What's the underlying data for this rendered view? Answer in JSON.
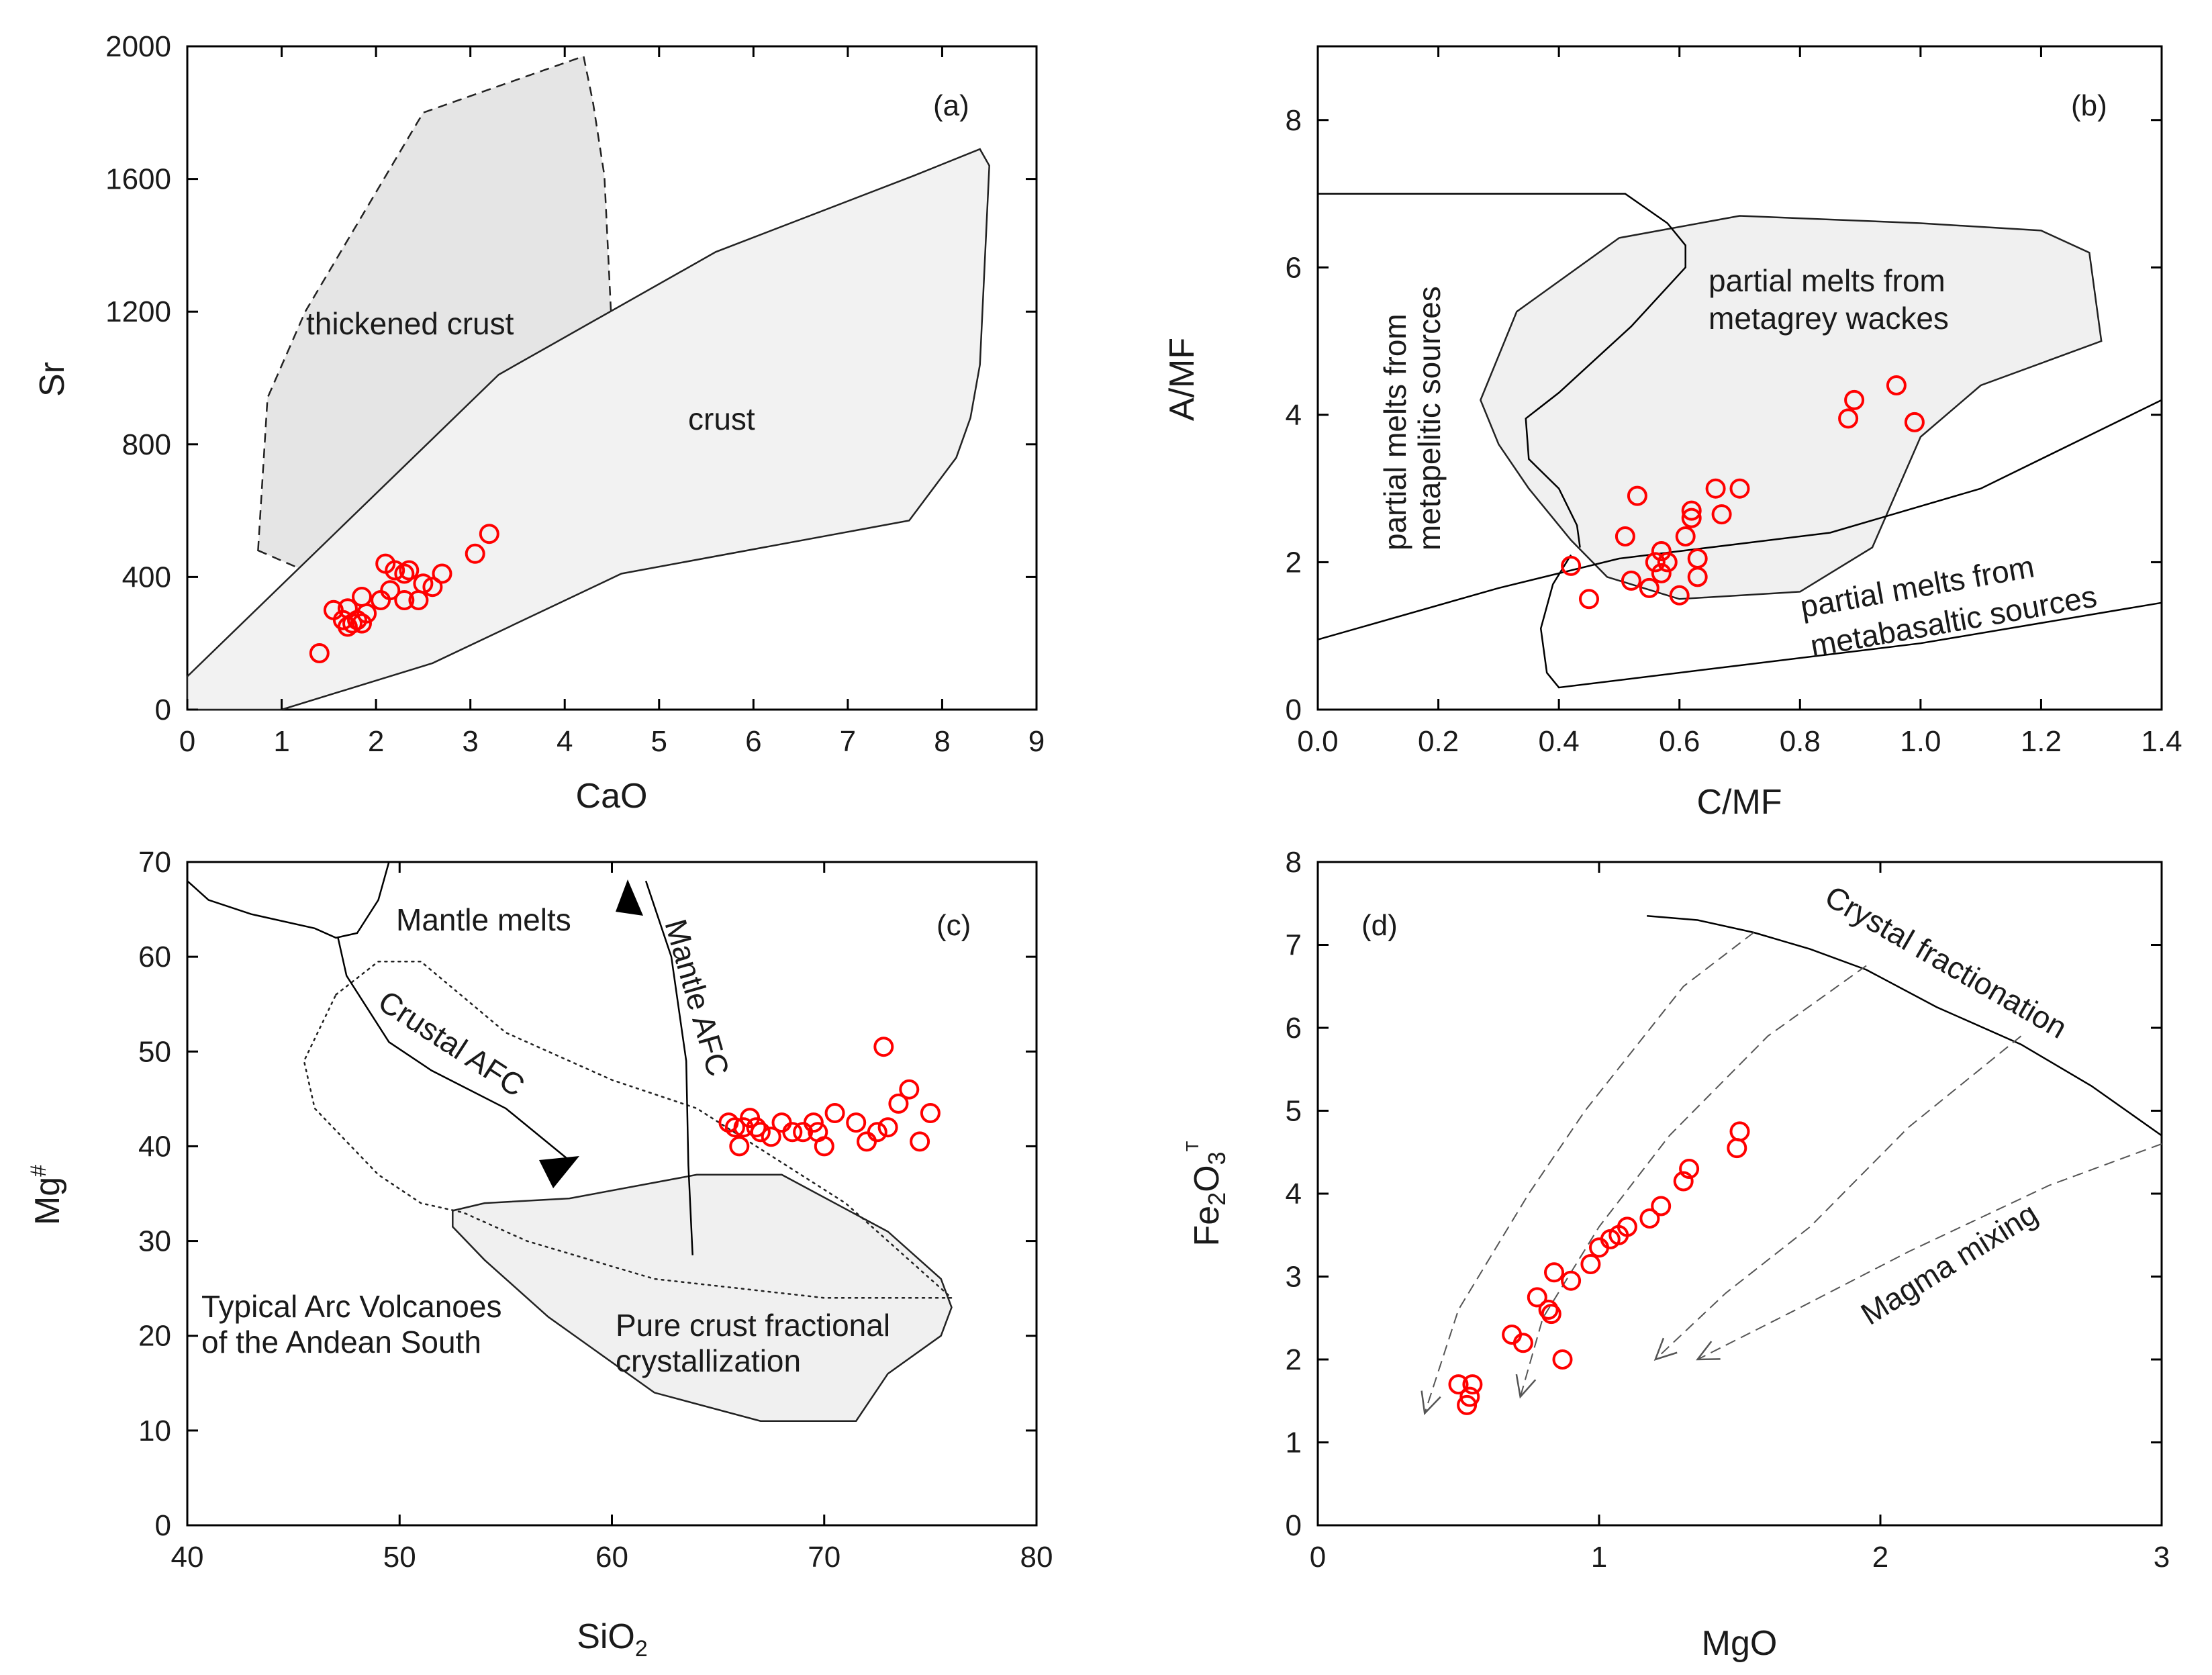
{
  "chart_data": [
    {
      "type": "scatter",
      "panel": "(a)",
      "xlabel": "CaO",
      "ylabel": "Sr",
      "xlim": [
        0,
        9
      ],
      "ylim": [
        0,
        2000
      ],
      "xticks": [
        "0",
        "1",
        "2",
        "3",
        "4",
        "5",
        "6",
        "7",
        "8",
        "9"
      ],
      "yticks": [
        "0",
        "400",
        "800",
        "1200",
        "1600",
        "2000"
      ],
      "fields": [
        {
          "label": "thickened crust",
          "style": "dashed",
          "fill": "#e5e5e5",
          "polygon": [
            [
              0.75,
              480
            ],
            [
              0.85,
              940
            ],
            [
              1.25,
              1200
            ],
            [
              2.5,
              1800
            ],
            [
              4.2,
              1970
            ],
            [
              4.3,
              1830
            ],
            [
              4.42,
              1610
            ],
            [
              4.5,
              1140
            ],
            [
              3.6,
              680
            ],
            [
              2.6,
              425
            ],
            [
              1.8,
              350
            ]
          ]
        },
        {
          "label": "crust",
          "style": "solid",
          "fill": "#f2f2f2",
          "polygon": [
            [
              0,
              0
            ],
            [
              0,
              100
            ],
            [
              3.3,
              1010
            ],
            [
              5.6,
              1380
            ],
            [
              7.7,
              1610
            ],
            [
              8.4,
              1690
            ],
            [
              8.5,
              1640
            ],
            [
              8.4,
              1040
            ],
            [
              8.3,
              880
            ],
            [
              8.15,
              760
            ],
            [
              7.65,
              570
            ],
            [
              4.6,
              410
            ],
            [
              2.6,
              140
            ],
            [
              1.0,
              0
            ]
          ]
        }
      ],
      "points": [
        [
          1.4,
          170
        ],
        [
          1.55,
          300
        ],
        [
          1.65,
          270
        ],
        [
          1.7,
          250
        ],
        [
          1.75,
          260
        ],
        [
          1.7,
          305
        ],
        [
          1.8,
          270
        ],
        [
          1.85,
          340
        ],
        [
          1.9,
          290
        ],
        [
          1.85,
          260
        ],
        [
          2.05,
          330
        ],
        [
          2.1,
          440
        ],
        [
          2.15,
          360
        ],
        [
          2.2,
          420
        ],
        [
          2.3,
          410
        ],
        [
          2.35,
          420
        ],
        [
          2.3,
          330
        ],
        [
          2.45,
          330
        ],
        [
          2.5,
          380
        ],
        [
          2.6,
          370
        ],
        [
          2.7,
          410
        ],
        [
          3.05,
          470
        ],
        [
          3.2,
          530
        ]
      ],
      "marker_color": "#ff0000"
    },
    {
      "type": "scatter",
      "panel": "(b)",
      "xlabel": "C/MF",
      "ylabel": "A/MF",
      "xlim": [
        0,
        1.4
      ],
      "ylim": [
        0,
        9
      ],
      "xticks": [
        "0.0",
        "0.2",
        "0.4",
        "0.6",
        "0.8",
        "1.0",
        "1.2",
        "1.4"
      ],
      "yticks": [
        "0",
        "2",
        "4",
        "6",
        "8"
      ],
      "fields": [
        {
          "label": "partial melts from metagrey wackes",
          "style": "solid",
          "fill": "#f0f0f0",
          "polygon": [
            [
              0.27,
              4.2
            ],
            [
              0.33,
              5.4
            ],
            [
              0.5,
              6.4
            ],
            [
              0.7,
              6.7
            ],
            [
              1.0,
              6.6
            ],
            [
              1.2,
              6.5
            ],
            [
              1.28,
              6.2
            ],
            [
              1.3,
              5.0
            ],
            [
              1.1,
              4.4
            ],
            [
              1.0,
              3.7
            ],
            [
              0.92,
              2.2
            ],
            [
              0.8,
              1.6
            ],
            [
              0.6,
              1.5
            ],
            [
              0.48,
              1.8
            ],
            [
              0.42,
              2.3
            ],
            [
              0.35,
              3.0
            ],
            [
              0.3,
              3.6
            ]
          ]
        }
      ],
      "curves": [
        {
          "label": "partial melts from metapelitic sources",
          "points": [
            [
              0.0,
              7.0
            ],
            [
              0.51,
              7.0
            ],
            [
              0.58,
              6.6
            ],
            [
              0.61,
              6.3
            ],
            [
              0.61,
              6.0
            ],
            [
              0.52,
              5.2
            ],
            [
              0.4,
              4.3
            ],
            [
              0.345,
              3.95
            ],
            [
              0.35,
              3.4
            ],
            [
              0.4,
              3.0
            ],
            [
              0.43,
              2.5
            ],
            [
              0.435,
              2.2
            ]
          ]
        },
        {
          "label": "",
          "points": [
            [
              0.0,
              0.95
            ],
            [
              0.3,
              1.65
            ],
            [
              0.5,
              2.05
            ],
            [
              0.75,
              2.3
            ],
            [
              0.85,
              2.4
            ],
            [
              1.1,
              3.0
            ],
            [
              1.4,
              4.2
            ]
          ]
        },
        {
          "label": "partial melts from metabasaltic sources",
          "points": [
            [
              0.42,
              2.1
            ],
            [
              0.39,
              1.7
            ],
            [
              0.37,
              1.1
            ],
            [
              0.38,
              0.5
            ],
            [
              0.4,
              0.3
            ],
            [
              0.7,
              0.6
            ],
            [
              1.0,
              0.9
            ],
            [
              1.4,
              1.45
            ]
          ]
        }
      ],
      "points": [
        [
          0.42,
          1.95
        ],
        [
          0.45,
          1.5
        ],
        [
          0.51,
          2.35
        ],
        [
          0.52,
          1.75
        ],
        [
          0.53,
          2.9
        ],
        [
          0.55,
          1.65
        ],
        [
          0.56,
          2.0
        ],
        [
          0.57,
          2.15
        ],
        [
          0.57,
          1.85
        ],
        [
          0.58,
          2.0
        ],
        [
          0.6,
          1.55
        ],
        [
          0.61,
          2.35
        ],
        [
          0.62,
          2.6
        ],
        [
          0.62,
          2.7
        ],
        [
          0.63,
          2.05
        ],
        [
          0.63,
          1.8
        ],
        [
          0.66,
          3.0
        ],
        [
          0.67,
          2.65
        ],
        [
          0.7,
          3.0
        ],
        [
          0.88,
          3.95
        ],
        [
          0.89,
          4.2
        ],
        [
          0.96,
          4.4
        ],
        [
          0.99,
          3.9
        ]
      ],
      "marker_color": "#ff0000"
    },
    {
      "type": "scatter",
      "panel": "(c)",
      "xlabel": "SiO2",
      "ylabel": "Mg#",
      "xlim": [
        40,
        80
      ],
      "ylim": [
        0,
        70
      ],
      "xticks": [
        "40",
        "50",
        "60",
        "70",
        "80"
      ],
      "yticks": [
        "0",
        "10",
        "20",
        "30",
        "40",
        "50",
        "60",
        "70"
      ],
      "fields": [
        {
          "label": "Pure crust fractional crystallization",
          "style": "solid",
          "fill": "#f0f0f0",
          "polygon": [
            [
              52.5,
              33.2
            ],
            [
              54,
              34
            ],
            [
              58,
              34.5
            ],
            [
              64,
              37
            ],
            [
              68,
              37
            ],
            [
              73,
              31
            ],
            [
              75.5,
              26
            ],
            [
              76,
              23
            ],
            [
              75.5,
              20
            ],
            [
              73,
              16
            ],
            [
              71.5,
              11
            ],
            [
              67,
              11
            ],
            [
              62,
              14
            ],
            [
              57,
              22
            ],
            [
              54,
              28
            ],
            [
              52.5,
              31.5
            ]
          ]
        },
        {
          "label": "Typical Arc Volcanoes of the Andean South",
          "style": "dotted",
          "fill": "none",
          "polygon": [
            [
              47,
              56
            ],
            [
              49,
              59.5
            ],
            [
              51,
              59.5
            ],
            [
              55,
              52
            ],
            [
              60,
              47
            ],
            [
              64,
              44
            ],
            [
              71,
              34
            ],
            [
              76,
              24
            ],
            [
              70,
              24
            ],
            [
              62,
              26
            ],
            [
              56,
              30
            ],
            [
              53,
              33
            ],
            [
              51,
              34
            ],
            [
              49,
              37
            ],
            [
              46,
              44
            ],
            [
              45.5,
              49
            ]
          ]
        }
      ],
      "curves": [
        {
          "label": "Mantle melts",
          "points": [
            [
              40,
              68
            ],
            [
              41,
              66
            ],
            [
              43,
              64.5
            ],
            [
              46,
              63
            ],
            [
              47,
              62
            ],
            [
              48,
              62.5
            ],
            [
              49,
              66
            ],
            [
              49.5,
              70
            ]
          ]
        },
        {
          "label": "Crustal AFC",
          "points": [
            [
              47.1,
              62
            ],
            [
              47.5,
              58
            ],
            [
              49.5,
              51
            ],
            [
              51.5,
              48
            ],
            [
              55,
              44
            ],
            [
              58,
              38.5
            ]
          ]
        },
        {
          "label": "Mantle AFC",
          "points": [
            [
              63.8,
              28.5
            ],
            [
              63.6,
              38
            ],
            [
              63.5,
              49
            ],
            [
              62.8,
              60
            ],
            [
              61.6,
              68
            ]
          ]
        }
      ],
      "points": [
        [
          65.5,
          42.5
        ],
        [
          65.8,
          42
        ],
        [
          66,
          40
        ],
        [
          66.2,
          42
        ],
        [
          66.5,
          43
        ],
        [
          66.8,
          42
        ],
        [
          67,
          41.5
        ],
        [
          67.5,
          41
        ],
        [
          68,
          42.5
        ],
        [
          68.5,
          41.5
        ],
        [
          69,
          41.5
        ],
        [
          69.5,
          42.5
        ],
        [
          69.7,
          41.5
        ],
        [
          70,
          40
        ],
        [
          70.5,
          43.5
        ],
        [
          71.5,
          42.5
        ],
        [
          72,
          40.5
        ],
        [
          72.5,
          41.5
        ],
        [
          73,
          42
        ],
        [
          73.5,
          44.5
        ],
        [
          72.8,
          50.5
        ],
        [
          74,
          46
        ],
        [
          74.5,
          40.5
        ],
        [
          75,
          43.5
        ]
      ],
      "marker_color": "#ff0000"
    },
    {
      "type": "scatter",
      "panel": "(d)",
      "xlabel": "MgO",
      "ylabel": "Fe2O3T",
      "xlim": [
        0,
        3
      ],
      "ylim": [
        0,
        8
      ],
      "xticks": [
        "0",
        "1",
        "2",
        "3"
      ],
      "yticks": [
        "0",
        "1",
        "2",
        "3",
        "4",
        "5",
        "6",
        "7",
        "8"
      ],
      "curves": [
        {
          "label": "Crystal fractionation",
          "style": "solid",
          "points": [
            [
              1.17,
              7.35
            ],
            [
              1.35,
              7.3
            ],
            [
              1.55,
              7.15
            ],
            [
              1.75,
              6.95
            ],
            [
              1.95,
              6.7
            ],
            [
              2.2,
              6.25
            ],
            [
              2.5,
              5.8
            ],
            [
              2.75,
              5.3
            ],
            [
              3.0,
              4.7
            ]
          ]
        },
        {
          "label": "",
          "style": "dashed",
          "points": [
            [
              1.55,
              7.15
            ],
            [
              1.3,
              6.5
            ],
            [
              0.95,
              5.0
            ],
            [
              0.75,
              4.0
            ],
            [
              0.5,
              2.6
            ],
            [
              0.38,
              1.35
            ]
          ]
        },
        {
          "label": "",
          "style": "dashed",
          "points": [
            [
              1.95,
              6.75
            ],
            [
              1.6,
              5.9
            ],
            [
              1.25,
              4.7
            ],
            [
              1.0,
              3.6
            ],
            [
              0.8,
              2.5
            ],
            [
              0.72,
              1.55
            ]
          ]
        },
        {
          "label": "",
          "style": "dashed",
          "points": [
            [
              2.5,
              5.9
            ],
            [
              2.1,
              4.8
            ],
            [
              1.75,
              3.6
            ],
            [
              1.45,
              2.8
            ],
            [
              1.2,
              2.0
            ]
          ]
        },
        {
          "label": "Magma mixing",
          "style": "dashed",
          "points": [
            [
              3.0,
              4.6
            ],
            [
              2.6,
              4.1
            ],
            [
              2.1,
              3.3
            ],
            [
              1.7,
              2.6
            ],
            [
              1.35,
              2.0
            ]
          ]
        }
      ],
      "points": [
        [
          0.5,
          1.7
        ],
        [
          0.53,
          1.45
        ],
        [
          0.54,
          1.55
        ],
        [
          0.55,
          1.7
        ],
        [
          0.69,
          2.3
        ],
        [
          0.73,
          2.2
        ],
        [
          0.78,
          2.75
        ],
        [
          0.82,
          2.6
        ],
        [
          0.83,
          2.55
        ],
        [
          0.84,
          3.05
        ],
        [
          0.87,
          2.0
        ],
        [
          0.9,
          2.95
        ],
        [
          0.97,
          3.15
        ],
        [
          1.0,
          3.35
        ],
        [
          1.04,
          3.45
        ],
        [
          1.07,
          3.5
        ],
        [
          1.1,
          3.6
        ],
        [
          1.18,
          3.7
        ],
        [
          1.22,
          3.85
        ],
        [
          1.3,
          4.15
        ],
        [
          1.32,
          4.3
        ],
        [
          1.49,
          4.55
        ],
        [
          1.5,
          4.75
        ]
      ],
      "marker_color": "#ff0000"
    }
  ]
}
